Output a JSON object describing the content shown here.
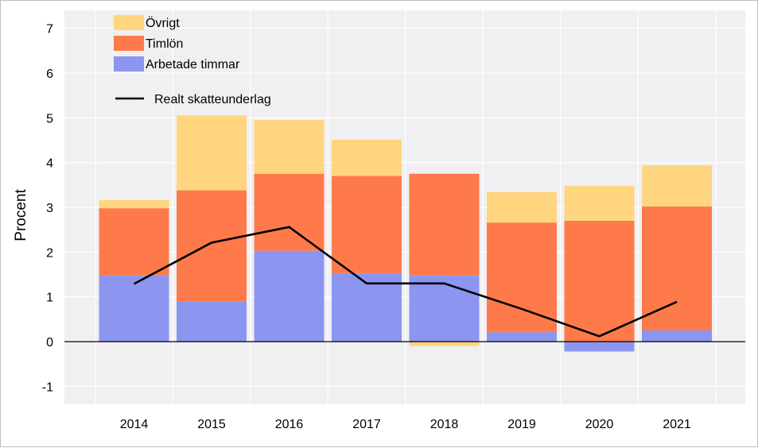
{
  "chart_data": {
    "type": "bar",
    "stacked": true,
    "title": "",
    "xlabel": "",
    "ylabel": "Procent",
    "ylim": [
      -1.4,
      7.4
    ],
    "yticks": [
      -1,
      0,
      1,
      2,
      3,
      4,
      5,
      6,
      7
    ],
    "ytick_labels": [
      "-1",
      "0",
      "1",
      "2",
      "3",
      "4",
      "5",
      "6",
      "7"
    ],
    "grid": true,
    "categories": [
      "2014",
      "2015",
      "2016",
      "2017",
      "2018",
      "2019",
      "2020",
      "2021"
    ],
    "series": [
      {
        "name": "Arbetade timmar",
        "color": "#8c96f0",
        "values": [
          1.48,
          0.9,
          2.03,
          1.53,
          1.48,
          0.21,
          -0.22,
          0.25
        ]
      },
      {
        "name": "Timlön",
        "color": "#ff7a4a",
        "values": [
          1.5,
          2.48,
          1.72,
          2.17,
          2.27,
          2.45,
          2.7,
          2.77
        ]
      },
      {
        "name": "Övrigt",
        "color": "#ffd67f",
        "values": [
          0.18,
          1.67,
          1.2,
          0.81,
          -0.1,
          0.68,
          0.78,
          0.92
        ]
      }
    ],
    "line_series": [
      {
        "name": "Realt skatteunderlag",
        "color": "#000000",
        "values": [
          1.29,
          2.21,
          2.56,
          1.3,
          1.3,
          0.73,
          0.12,
          0.89
        ]
      }
    ],
    "legend": {
      "position": "top-left",
      "entries": [
        "Övrigt",
        "Timlön",
        "Arbetade timmar",
        "Realt skatteunderlag"
      ]
    }
  }
}
